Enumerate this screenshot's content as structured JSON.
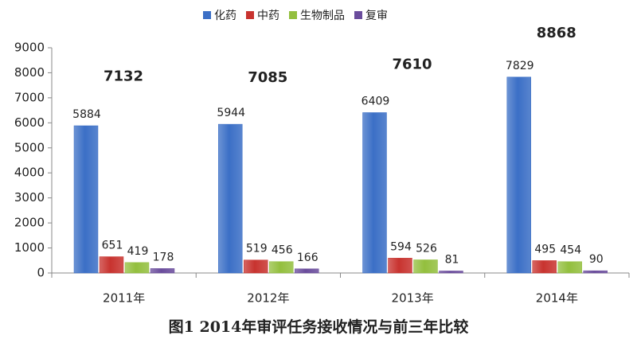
{
  "chart_data": {
    "type": "bar",
    "caption": "图1  2014年审评任务接收情况与前三年比较",
    "categories": [
      "2011年",
      "2012年",
      "2013年",
      "2014年"
    ],
    "series": [
      {
        "name": "化药",
        "color": "#3b6fc6",
        "values": [
          5884,
          5944,
          6409,
          7829
        ]
      },
      {
        "name": "中药",
        "color": "#c8332f",
        "values": [
          651,
          519,
          594,
          495
        ]
      },
      {
        "name": "生物制品",
        "color": "#93bf3e",
        "values": [
          419,
          456,
          526,
          454
        ]
      },
      {
        "name": "复审",
        "color": "#6a4c9c",
        "values": [
          178,
          166,
          81,
          90
        ]
      }
    ],
    "totals": [
      7132,
      7085,
      7610,
      8868
    ],
    "ylim": [
      0,
      9000
    ],
    "yticks": [
      0,
      1000,
      2000,
      3000,
      4000,
      5000,
      6000,
      7000,
      8000,
      9000
    ],
    "legend": "top"
  }
}
